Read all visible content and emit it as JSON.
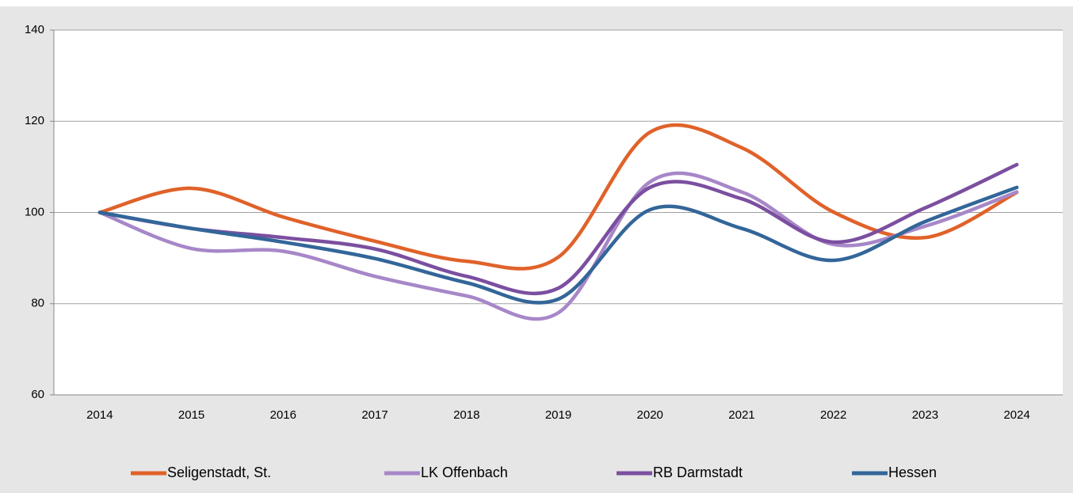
{
  "chart_data": {
    "type": "line",
    "categories": [
      "2014",
      "2015",
      "2016",
      "2017",
      "2018",
      "2019",
      "2020",
      "2021",
      "2022",
      "2023",
      "2024"
    ],
    "series": [
      {
        "name": "Seligenstadt, St.",
        "color": "#e0622a",
        "values": [
          100,
          105.3,
          99,
          93.7,
          89.3,
          90.2,
          117.6,
          114.2,
          100.1,
          94.5,
          104.4
        ]
      },
      {
        "name": "LK Offenbach",
        "color": "#a787c8",
        "values": [
          100,
          92.1,
          91.5,
          86,
          81.7,
          78,
          106.7,
          104.5,
          93,
          97,
          104.5
        ]
      },
      {
        "name": "RB Darmstadt",
        "color": "#7b4fa0",
        "values": [
          100,
          96.5,
          94.5,
          92,
          86,
          83.4,
          105.5,
          103,
          93.5,
          101,
          110.5
        ]
      },
      {
        "name": "Hessen",
        "color": "#336699",
        "values": [
          100,
          96.5,
          93.5,
          89.9,
          84.6,
          81,
          100.6,
          96.5,
          89.5,
          98,
          105.5
        ]
      }
    ],
    "ylim": [
      60,
      140
    ],
    "yticks": [
      60,
      80,
      100,
      120,
      140
    ],
    "grid": true,
    "legend": "bottom"
  }
}
